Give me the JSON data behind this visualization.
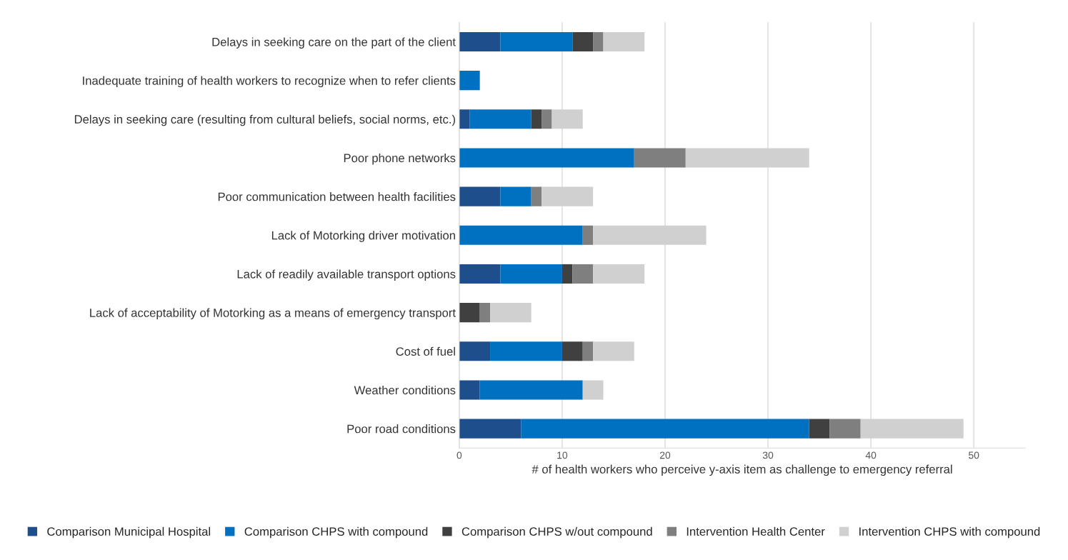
{
  "chart_data": {
    "type": "bar",
    "orientation": "horizontal",
    "stacked": true,
    "xlabel": "# of health workers who perceive y-axis item as challenge to emergency referral",
    "categories": [
      "Delays in seeking care on the part of the client",
      "Inadequate training of health workers to recognize when to refer clients",
      "Delays in seeking care (resulting from cultural beliefs, social norms, etc.)",
      "Poor phone networks",
      "Poor communication between health facilities",
      "Lack of Motorking driver motivation",
      "Lack of readily available transport options",
      "Lack of acceptability of Motorking as a means of emergency transport",
      "Cost of fuel",
      "Weather conditions",
      "Poor road conditions"
    ],
    "series": [
      {
        "name": "Comparison Municipal Hospital",
        "color": "#1f4e8c",
        "values": [
          4,
          0,
          1,
          0,
          4,
          0,
          4,
          0,
          3,
          2,
          6
        ]
      },
      {
        "name": "Comparison CHPS with compound",
        "color": "#0070c0",
        "values": [
          7,
          2,
          6,
          17,
          3,
          12,
          6,
          0,
          7,
          10,
          28
        ]
      },
      {
        "name": "Comparison CHPS w/out compound",
        "color": "#404040",
        "values": [
          2,
          0,
          1,
          0,
          0,
          0,
          1,
          2,
          2,
          0,
          2
        ]
      },
      {
        "name": "Intervention Health Center",
        "color": "#7f7f7f",
        "values": [
          1,
          0,
          1,
          5,
          1,
          1,
          2,
          1,
          1,
          0,
          3
        ]
      },
      {
        "name": "Intervention CHPS with compound",
        "color": "#d0d0d0",
        "values": [
          4,
          0,
          3,
          12,
          5,
          11,
          5,
          4,
          4,
          2,
          10
        ]
      }
    ],
    "xlim": [
      0,
      55
    ],
    "xticks": [
      0,
      10,
      20,
      30,
      40,
      50
    ],
    "grid": "x",
    "legend": "bottom"
  }
}
